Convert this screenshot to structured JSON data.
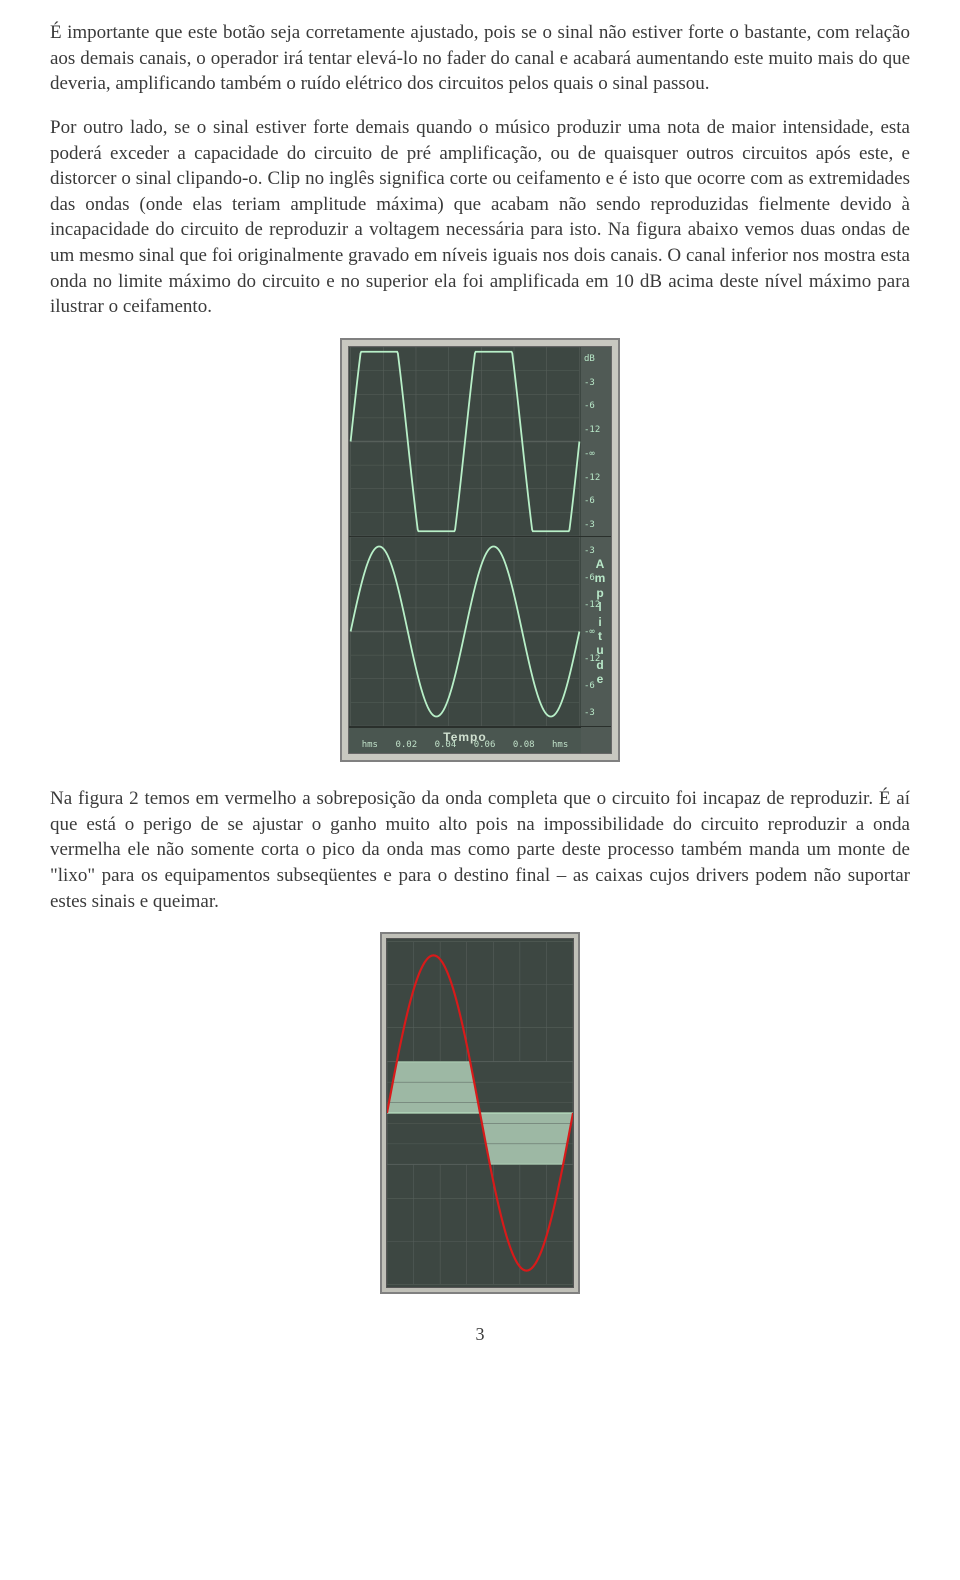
{
  "paragraphs": {
    "p1": "É importante que este botão seja corretamente ajustado, pois se o sinal não estiver forte o bastante, com relação aos demais canais, o operador irá tentar elevá-lo no fader do canal e acabará aumentando este muito mais do que deveria, amplificando também o ruído elétrico dos circuitos pelos quais o sinal passou.",
    "p2": "Por outro lado, se o sinal estiver forte demais quando o músico produzir uma nota de maior intensidade, esta poderá exceder a capacidade do circuito de pré amplificação, ou de quaisquer outros circuitos após este, e distorcer o sinal clipando-o. Clip no inglês significa corte ou ceifamento e é isto que ocorre com as extremidades das ondas (onde elas teriam amplitude máxima) que acabam não sendo reproduzidas fielmente devido à incapacidade do circuito de reproduzir a voltagem necessária para isto. Na figura abaixo vemos duas ondas de um mesmo sinal que foi originalmente gravado em níveis iguais nos dois canais. O canal inferior nos mostra esta onda no limite máximo do circuito e no superior ela foi amplificada em 10 dB acima deste nível máximo para ilustrar o ceifamento.",
    "p3": "Na figura 2 temos em vermelho a sobreposição da onda completa que o circuito foi incapaz de reproduzir. É aí que está o perigo de se ajustar o ganho muito alto pois na impossibilidade do circuito reproduzir a onda vermelha ele não somente corta o pico da onda mas como parte deste processo também manda um monte de \"lixo\" para os equipamentos subseqüentes e para o destino final – as caixas cujos drivers podem não suportar estes sinais e queimar."
  },
  "figure1": {
    "type": "waveform-dual",
    "background_color": "#3d4742",
    "grid_color": "#565f5a",
    "wave_color": "#b8f0c8",
    "wave_stroke_width": 1.8,
    "scale_font_size": 9,
    "scale_color": "#b8e8c8",
    "x_label": "Tempo",
    "amp_label": "Amplitude",
    "x_ticks": [
      "hms",
      "0.02",
      "0.04",
      "0.06",
      "0.08",
      "hms"
    ],
    "y_ticks_top": [
      "dB",
      "-3",
      "-6",
      "-12",
      "-∞",
      "-12",
      "-6",
      "-3"
    ],
    "y_ticks_bottom": [
      "-3",
      "-6",
      "-12",
      "-∞",
      "-12",
      "-6",
      "-3"
    ],
    "cycles_per_panel": 2,
    "clipped_amplitude_ratio": 0.95,
    "sine_amplitude_ratio": 0.9
  },
  "figure2": {
    "type": "waveform-clip-overlay",
    "background_color": "#3d4742",
    "grid_color": "#565f5a",
    "clipped_fill_color": "#9db8a4",
    "clipped_stroke_color": "#b8e0c0",
    "fullwave_color": "#d81a1a",
    "fullwave_stroke_width": 2.2,
    "clip_ratio": 0.3,
    "sine_peak_ratio": 0.92
  },
  "page_number": "3"
}
